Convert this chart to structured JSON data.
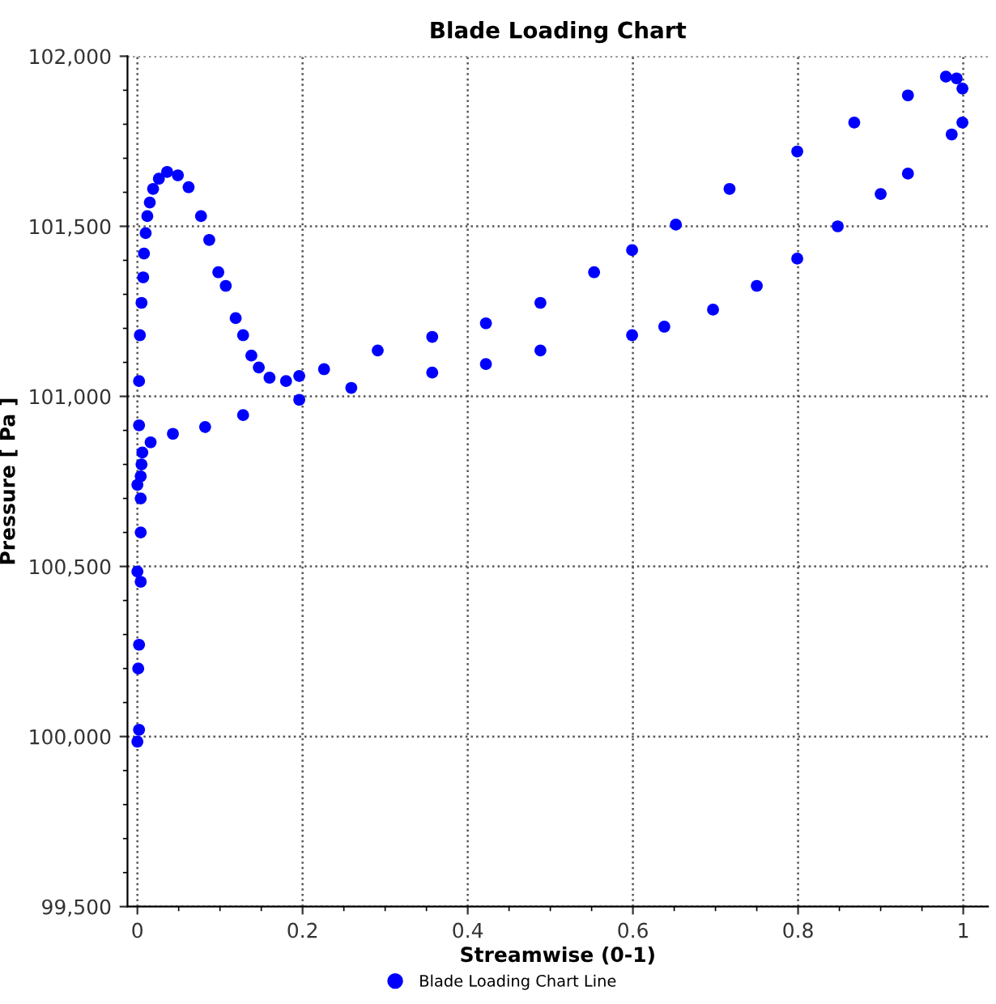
{
  "chart_data": {
    "type": "scatter",
    "title": "Blade Loading Chart",
    "xlabel": "Streamwise (0-1)",
    "ylabel": "Pressure [ Pa ]",
    "series": [
      {
        "name": "Blade Loading Chart Line",
        "color": "#0000ff",
        "x": [
          0.0,
          0.002,
          0.001,
          0.002,
          0.004,
          0.0,
          0.004,
          0.004,
          0.0,
          0.004,
          0.002,
          0.002,
          0.003,
          0.005,
          0.007,
          0.008,
          0.01,
          0.012,
          0.015,
          0.019,
          0.026,
          0.036,
          0.049,
          0.062,
          0.077,
          0.087,
          0.098,
          0.107,
          0.119,
          0.128,
          0.138,
          0.147,
          0.16,
          0.18,
          0.196,
          0.226,
          0.291,
          0.357,
          0.422,
          0.488,
          0.553,
          0.599,
          0.652,
          0.717,
          0.799,
          0.868,
          0.933,
          0.979,
          0.992,
          0.999,
          0.999,
          0.986,
          0.933,
          0.9,
          0.848,
          0.799,
          0.75,
          0.697,
          0.638,
          0.599,
          0.488,
          0.422,
          0.357,
          0.259,
          0.196,
          0.128,
          0.082,
          0.043,
          0.016,
          0.006,
          0.005
        ],
        "values": [
          99985,
          100020,
          100200,
          100270,
          100455,
          100485,
          100600,
          100700,
          100740,
          100765,
          100915,
          101045,
          101180,
          101275,
          101350,
          101420,
          101480,
          101530,
          101570,
          101610,
          101640,
          101660,
          101650,
          101615,
          101530,
          101460,
          101365,
          101325,
          101230,
          101180,
          101120,
          101085,
          101055,
          101045,
          101060,
          101080,
          101135,
          101175,
          101215,
          101275,
          101365,
          101430,
          101505,
          101610,
          101720,
          101805,
          101885,
          101940,
          101935,
          101905,
          101805,
          101770,
          101655,
          101595,
          101500,
          101405,
          101325,
          101255,
          101205,
          101180,
          101135,
          101095,
          101070,
          101025,
          100990,
          100945,
          100910,
          100890,
          100865,
          100835,
          100800
        ]
      }
    ],
    "xlim": [
      -0.012,
      1.03
    ],
    "ylim": [
      99500,
      102000
    ],
    "xticks": [
      0,
      0.2,
      0.4,
      0.6,
      0.8,
      1
    ],
    "yticks": [
      {
        "value": 99500,
        "label": "99,500"
      },
      {
        "value": 100000,
        "label": "100,000"
      },
      {
        "value": 100500,
        "label": "100,500"
      },
      {
        "value": 101000,
        "label": "101,000"
      },
      {
        "value": 101500,
        "label": "101,500"
      },
      {
        "value": 102000,
        "label": "102,000"
      }
    ],
    "grid": true,
    "legend": "bottom",
    "marker": "circle"
  }
}
